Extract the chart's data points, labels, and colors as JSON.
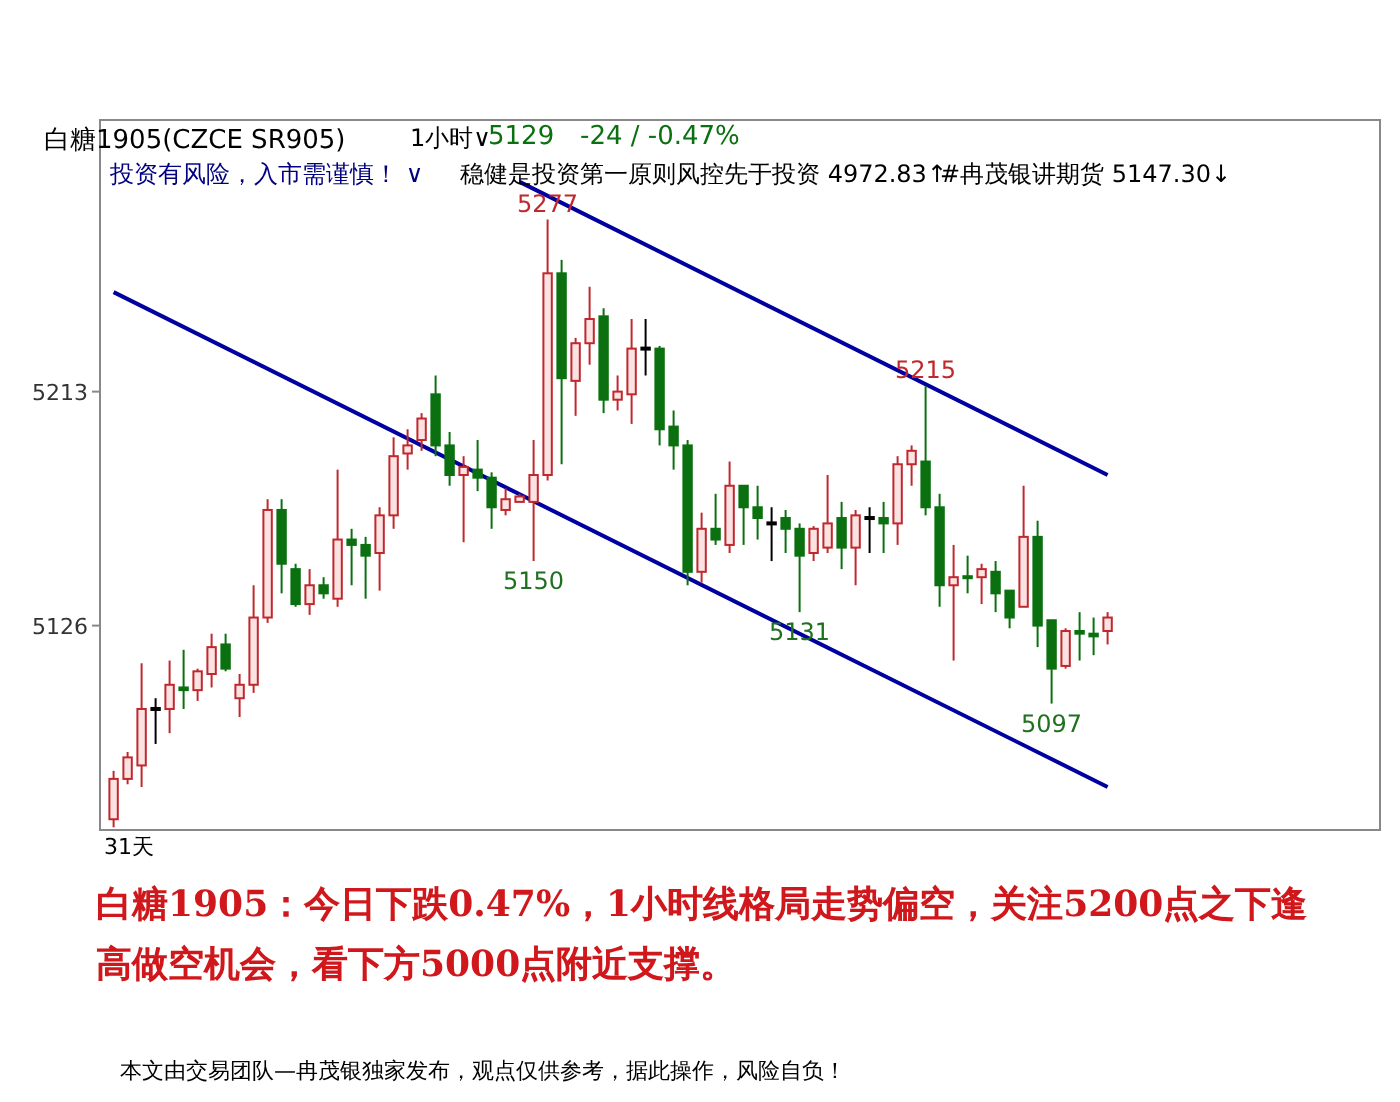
{
  "chart_data": {
    "type": "candlestick",
    "title": "白糖1905(CZCE SR905)",
    "categories": [
      null,
      null,
      null,
      null,
      null,
      null,
      null,
      null,
      null,
      null,
      null,
      null,
      null,
      null,
      null,
      null,
      null,
      null,
      null,
      null,
      null,
      null,
      null,
      null,
      null,
      null,
      null,
      null,
      null,
      null,
      null,
      null,
      null,
      null,
      null,
      null,
      null,
      null,
      null,
      null,
      null,
      null,
      null,
      null,
      null,
      null,
      null,
      null,
      null,
      null,
      null,
      null,
      null,
      null,
      null,
      null,
      null,
      null,
      null,
      null,
      null,
      null,
      null,
      null,
      null,
      null,
      null,
      null,
      null,
      null,
      null,
      null
    ],
    "ohlc": [
      [
        5054,
        5072,
        5051,
        5069
      ],
      [
        5069,
        5079,
        5067,
        5077
      ],
      [
        5074,
        5112,
        5066,
        5095
      ],
      [
        5095,
        5099,
        5082,
        5095
      ],
      [
        5095,
        5113,
        5086,
        5104
      ],
      [
        5103,
        5117,
        5095,
        5102
      ],
      [
        5102,
        5110,
        5098,
        5109
      ],
      [
        5108,
        5123,
        5103,
        5118
      ],
      [
        5119,
        5123,
        5109,
        5110
      ],
      [
        5099,
        5108,
        5092,
        5104
      ],
      [
        5104,
        5141,
        5101,
        5129
      ],
      [
        5129,
        5173,
        5127,
        5169
      ],
      [
        5169,
        5173,
        5138,
        5149
      ],
      [
        5147,
        5149,
        5133,
        5134
      ],
      [
        5134,
        5147,
        5130,
        5141
      ],
      [
        5141,
        5144,
        5136,
        5138
      ],
      [
        5136,
        5184,
        5133,
        5158
      ],
      [
        5158,
        5162,
        5141,
        5156
      ],
      [
        5156,
        5159,
        5136,
        5152
      ],
      [
        5153,
        5170,
        5139,
        5167
      ],
      [
        5167,
        5196,
        5162,
        5189
      ],
      [
        5190,
        5199,
        5184,
        5193
      ],
      [
        5195,
        5205,
        5191,
        5203
      ],
      [
        5212,
        5219,
        5189,
        5193
      ],
      [
        5193,
        5198,
        5178,
        5182
      ],
      [
        5182,
        5189,
        5157,
        5185
      ],
      [
        5184,
        5195,
        5176,
        5181
      ],
      [
        5181,
        5183,
        5162,
        5170
      ],
      [
        5169,
        5177,
        5167,
        5173
      ],
      [
        5172,
        5175,
        5172,
        5174
      ],
      [
        5172,
        5195,
        5150,
        5182
      ],
      [
        5182,
        5277,
        5180,
        5257
      ],
      [
        5257,
        5262,
        5186,
        5218
      ],
      [
        5217,
        5233,
        5204,
        5231
      ],
      [
        5231,
        5252,
        5223,
        5240
      ],
      [
        5241,
        5244,
        5205,
        5210
      ],
      [
        5210,
        5219,
        5206,
        5213
      ],
      [
        5212,
        5240,
        5201,
        5229
      ],
      [
        5229,
        5240,
        5219,
        5229
      ],
      [
        5229,
        5230,
        5193,
        5199
      ],
      [
        5200,
        5206,
        5184,
        5193
      ],
      [
        5193,
        5195,
        5141,
        5146
      ],
      [
        5146,
        5168,
        5142,
        5162
      ],
      [
        5162,
        5175,
        5156,
        5158
      ],
      [
        5156,
        5187,
        5153,
        5178
      ],
      [
        5178,
        5178,
        5156,
        5170
      ],
      [
        5170,
        5178,
        5158,
        5166
      ],
      [
        5164,
        5170,
        5150,
        5164
      ],
      [
        5166,
        5169,
        5153,
        5162
      ],
      [
        5162,
        5164,
        5131,
        5152
      ],
      [
        5153,
        5163,
        5150,
        5162
      ],
      [
        5155,
        5182,
        5153,
        5164
      ],
      [
        5166,
        5172,
        5147,
        5155
      ],
      [
        5155,
        5169,
        5141,
        5167
      ],
      [
        5166,
        5170,
        5153,
        5166
      ],
      [
        5166,
        5172,
        5153,
        5164
      ],
      [
        5164,
        5189,
        5156,
        5186
      ],
      [
        5186,
        5193,
        5178,
        5191
      ],
      [
        5187,
        5215,
        5167,
        5170
      ],
      [
        5170,
        5175,
        5133,
        5141
      ],
      [
        5141,
        5156,
        5113,
        5144
      ],
      [
        5144,
        5152,
        5138,
        5144
      ],
      [
        5144,
        5149,
        5134,
        5147
      ],
      [
        5146,
        5150,
        5131,
        5138
      ],
      [
        5139,
        5139,
        5125,
        5129
      ],
      [
        5133,
        5178,
        5133,
        5159
      ],
      [
        5159,
        5165,
        5118,
        5126
      ],
      [
        5128,
        5128,
        5097,
        5110
      ],
      [
        5111,
        5125,
        5110,
        5124
      ],
      [
        5124,
        5131,
        5113,
        5123
      ],
      [
        5123,
        5129,
        5115,
        5122
      ],
      [
        5124,
        5131,
        5119,
        5129
      ]
    ],
    "colors": [
      "#c0282d",
      "#c0282d",
      "#c0282d",
      "#000000",
      "#c0282d",
      "#0a7010",
      "#c0282d",
      "#c0282d",
      "#0a7010",
      "#c0282d",
      "#c0282d",
      "#c0282d",
      "#0a7010",
      "#0a7010",
      "#c0282d",
      "#0a7010",
      "#c0282d",
      "#0a7010",
      "#0a7010",
      "#c0282d",
      "#c0282d",
      "#c0282d",
      "#c0282d",
      "#0a7010",
      "#0a7010",
      "#c0282d",
      "#0a7010",
      "#0a7010",
      "#c0282d",
      "#c0282d",
      "#c0282d",
      "#c0282d",
      "#0a7010",
      "#c0282d",
      "#c0282d",
      "#0a7010",
      "#c0282d",
      "#c0282d",
      "#000000",
      "#0a7010",
      "#0a7010",
      "#0a7010",
      "#c0282d",
      "#0a7010",
      "#c0282d",
      "#0a7010",
      "#0a7010",
      "#000000",
      "#0a7010",
      "#0a7010",
      "#c0282d",
      "#c0282d",
      "#0a7010",
      "#c0282d",
      "#000000",
      "#0a7010",
      "#c0282d",
      "#c0282d",
      "#0a7010",
      "#0a7010",
      "#c0282d",
      "#0a7010",
      "#c0282d",
      "#0a7010",
      "#0a7010",
      "#c0282d",
      "#0a7010",
      "#0a7010",
      "#c0282d",
      "#0a7010",
      "#0a7010",
      "#c0282d"
    ],
    "series": [
      {
        "type": "line",
        "values": [
          null,
          null,
          null,
          null,
          null,
          null,
          null,
          null,
          null,
          null,
          null,
          null,
          null,
          null,
          null,
          null,
          null,
          null,
          null,
          null,
          null,
          null,
          null,
          null,
          null,
          null,
          null,
          null,
          null,
          5291,
          null,
          null,
          null,
          null,
          null,
          null,
          null,
          null,
          null,
          null,
          null,
          null,
          null,
          null,
          null,
          null,
          null,
          null,
          null,
          null,
          null,
          null,
          null,
          null,
          null,
          null,
          null,
          null,
          null,
          null,
          null,
          null,
          null,
          null,
          null,
          null,
          null,
          null,
          null,
          null,
          null,
          5182
        ],
        "color": "#0000a0"
      },
      {
        "type": "line",
        "values": [
          5250,
          null,
          null,
          null,
          null,
          null,
          null,
          null,
          null,
          null,
          null,
          null,
          null,
          null,
          null,
          null,
          null,
          null,
          null,
          null,
          null,
          null,
          null,
          null,
          null,
          null,
          null,
          null,
          null,
          null,
          null,
          null,
          null,
          null,
          null,
          null,
          null,
          null,
          null,
          null,
          null,
          null,
          null,
          null,
          null,
          null,
          null,
          null,
          null,
          null,
          null,
          null,
          null,
          null,
          null,
          null,
          null,
          null,
          null,
          null,
          null,
          null,
          null,
          null,
          null,
          null,
          null,
          null,
          null,
          null,
          null,
          5066
        ],
        "color": "#0000a0"
      }
    ],
    "ylim": [
      5050,
      5314
    ],
    "yticks": [
      5126,
      5213
    ],
    "tick_labels": "y",
    "grid": false,
    "annotations": [
      {
        "text": "5277",
        "y": 5277
      },
      {
        "text": "5150",
        "y": 5150
      },
      {
        "text": "5215",
        "y": 5215
      },
      {
        "text": "5131",
        "y": 5131
      },
      {
        "text": "5097",
        "y": 5097
      },
      "1小时∨",
      "5129",
      "-24 / -0.47%",
      "投资有风险，入市需谨慎！ ∨",
      "稳健是投资第一原则风控先于投资 4972.83↑",
      "#冉茂银讲期货 5147.30↓",
      "31天",
      "白糖1905：今日下跌0.47%，1小时线格局走势偏空，关注5200点之下逢高做空机会，看下方5000点附近支撑。",
      "本文由交易团队—冉茂银独家发布，观点仅供参考，据此操作，风险自负！"
    ]
  }
}
